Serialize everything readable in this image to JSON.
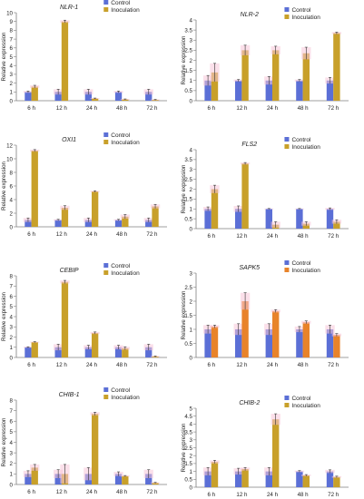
{
  "figure": {
    "colors": {
      "control": "#5b6fd6",
      "inoculation": "#c8a02a",
      "inoculation_alt": "#e8832a",
      "error_bar": "#f7c6d8",
      "axis": "#7f7f7f"
    }
  },
  "chart_data": [
    {
      "type": "bar",
      "title": "NLR-1",
      "ylabel": "Relative expression",
      "categories": [
        "6 h",
        "12 h",
        "24 h",
        "48 h",
        "72 h"
      ],
      "ylim": [
        0,
        10
      ],
      "yticks": [
        "0",
        "1",
        "2",
        "3",
        "4",
        "5",
        "6",
        "7",
        "8",
        "9",
        "10"
      ],
      "series": [
        {
          "name": "Control",
          "values": [
            1,
            1,
            1,
            1,
            1
          ],
          "errors": [
            0.1,
            0.3,
            0.3,
            0.1,
            0.3
          ],
          "color": "#5b6fd6"
        },
        {
          "name": "Inoculation",
          "values": [
            1.6,
            9.0,
            0.25,
            0.15,
            0.1
          ],
          "errors": [
            0.15,
            0.15,
            0.05,
            0.05,
            0.05
          ],
          "color": "#c8a02a"
        }
      ]
    },
    {
      "type": "bar",
      "title": "NLR-2",
      "ylabel": "Relative expression",
      "categories": [
        "6 h",
        "12 h",
        "24 h",
        "48 h",
        "72 h"
      ],
      "ylim": [
        0,
        4
      ],
      "yticks": [
        "0",
        "0.5",
        "1",
        "1.5",
        "2",
        "2.5",
        "3",
        "3.5",
        "4"
      ],
      "series": [
        {
          "name": "Control",
          "values": [
            1,
            1,
            1,
            1,
            1
          ],
          "errors": [
            0.25,
            0.05,
            0.2,
            0.05,
            0.15
          ],
          "color": "#5b6fd6"
        },
        {
          "name": "Inoculation",
          "values": [
            1.4,
            2.5,
            2.5,
            2.35,
            3.35
          ],
          "errors": [
            0.45,
            0.25,
            0.2,
            0.3,
            0.05
          ],
          "color": "#c8a02a"
        }
      ]
    },
    {
      "type": "bar",
      "title": "OXI1",
      "ylabel": "Relative expression",
      "categories": [
        "6 h",
        "12 h",
        "24 h",
        "48 h",
        "72 h"
      ],
      "ylim": [
        0,
        12
      ],
      "yticks": [
        "0",
        "2",
        "4",
        "6",
        "8",
        "10",
        "12"
      ],
      "series": [
        {
          "name": "Control",
          "values": [
            1,
            1,
            1,
            1,
            1
          ],
          "errors": [
            0.3,
            0.1,
            0.3,
            0.1,
            0.3
          ],
          "color": "#5b6fd6"
        },
        {
          "name": "Inoculation",
          "values": [
            11.2,
            2.8,
            5.2,
            1.5,
            3.0
          ],
          "errors": [
            0.15,
            0.3,
            0.1,
            0.3,
            0.3
          ],
          "color": "#c8a02a"
        }
      ]
    },
    {
      "type": "bar",
      "title": "FLS2",
      "ylabel": "Relative expression",
      "categories": [
        "6 h",
        "12 h",
        "24 h",
        "48 h",
        "72 h"
      ],
      "ylim": [
        0,
        4
      ],
      "yticks": [
        "0",
        "0.5",
        "1",
        "1.5",
        "2",
        "2.5",
        "3",
        "3.5",
        "4"
      ],
      "series": [
        {
          "name": "Control",
          "values": [
            1,
            1,
            1,
            1,
            1
          ],
          "errors": [
            0.1,
            0.15,
            0.02,
            0.02,
            0.05
          ],
          "color": "#5b6fd6"
        },
        {
          "name": "Inoculation",
          "values": [
            2.0,
            3.3,
            0.2,
            0.25,
            0.35
          ],
          "errors": [
            0.2,
            0.05,
            0.15,
            0.1,
            0.1
          ],
          "color": "#c8a02a"
        }
      ]
    },
    {
      "type": "bar",
      "title": "CEBIP",
      "ylabel": "Relative expression",
      "categories": [
        "6 h",
        "12 h",
        "24 h",
        "48 h",
        "72 h"
      ],
      "ylim": [
        0,
        8
      ],
      "yticks": [
        "0",
        "1",
        "2",
        "3",
        "4",
        "5",
        "6",
        "7",
        "8"
      ],
      "series": [
        {
          "name": "Control",
          "values": [
            1,
            1,
            1,
            1,
            1
          ],
          "errors": [
            0.05,
            0.3,
            0.2,
            0.2,
            0.3
          ],
          "color": "#5b6fd6"
        },
        {
          "name": "Inoculation",
          "values": [
            1.5,
            7.4,
            2.4,
            0.9,
            0.1
          ],
          "errors": [
            0.05,
            0.15,
            0.1,
            0.15,
            0.05
          ],
          "color": "#c8a02a"
        }
      ]
    },
    {
      "type": "bar",
      "title": "SAPK5",
      "ylabel": "Relative expression",
      "categories": [
        "6 h",
        "12 h",
        "24 h",
        "48 h",
        "72 h"
      ],
      "ylim": [
        0,
        3
      ],
      "yticks": [
        "0",
        "0.5",
        "1",
        "1.5",
        "2",
        "2.5",
        "3"
      ],
      "series": [
        {
          "name": "Control",
          "values": [
            1,
            1,
            1,
            1,
            1
          ],
          "errors": [
            0.15,
            0.2,
            0.2,
            0.1,
            0.15
          ],
          "color": "#5b6fd6"
        },
        {
          "name": "Inoculation",
          "values": [
            1.1,
            2.0,
            1.65,
            1.25,
            0.8
          ],
          "errors": [
            0.05,
            0.3,
            0.05,
            0.05,
            0.05
          ],
          "color": "#e8832a"
        }
      ]
    },
    {
      "type": "bar",
      "title": "CHIB-1",
      "ylabel": "Relative expression",
      "categories": [
        "6 h",
        "12 h",
        "24 h",
        "48 h",
        "72 h"
      ],
      "ylim": [
        0,
        8
      ],
      "yticks": [
        "0",
        "1",
        "2",
        "3",
        "4",
        "5",
        "6",
        "7",
        "8"
      ],
      "series": [
        {
          "name": "Control",
          "values": [
            1,
            1,
            1,
            1,
            1
          ],
          "errors": [
            0.3,
            0.4,
            0.6,
            0.2,
            0.4
          ],
          "color": "#5b6fd6"
        },
        {
          "name": "Inoculation",
          "values": [
            1.6,
            1.0,
            6.7,
            0.8,
            0.15
          ],
          "errors": [
            0.3,
            0.9,
            0.15,
            0.05,
            0.05
          ],
          "color": "#c8a02a"
        }
      ]
    },
    {
      "type": "bar",
      "title": "CHIB-2",
      "ylabel": "Relative expression",
      "categories": [
        "6 h",
        "12 h",
        "24 h",
        "48 h",
        "72 h"
      ],
      "ylim": [
        0,
        5
      ],
      "yticks": [
        "0",
        "0.5",
        "1",
        "1.5",
        "2",
        "2.5",
        "3",
        "3.5",
        "4",
        "4.5",
        "5"
      ],
      "series": [
        {
          "name": "Control",
          "values": [
            1,
            1,
            1,
            1,
            1
          ],
          "errors": [
            0.25,
            0.2,
            0.25,
            0.05,
            0.1
          ],
          "color": "#5b6fd6"
        },
        {
          "name": "Inoculation",
          "values": [
            1.6,
            1.15,
            4.3,
            0.75,
            0.65
          ],
          "errors": [
            0.1,
            0.1,
            0.35,
            0.05,
            0.05
          ],
          "color": "#c8a02a"
        }
      ]
    }
  ]
}
